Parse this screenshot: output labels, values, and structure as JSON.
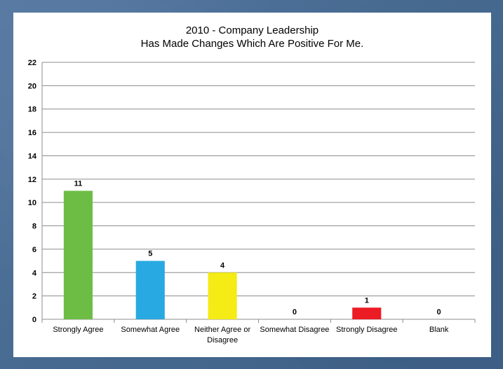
{
  "chart_data": {
    "type": "bar",
    "title": [
      "2010 - Company Leadership",
      "Has Made Changes Which Are Positive For Me."
    ],
    "categories": [
      [
        "Strongly Agree"
      ],
      [
        "Somewhat Agree"
      ],
      [
        "Neither Agree or",
        "Disagree"
      ],
      [
        "Somewhat Disagree"
      ],
      [
        "Strongly Disagree"
      ],
      [
        "Blank"
      ]
    ],
    "values": [
      11,
      5,
      4,
      0,
      1,
      0
    ],
    "colors": [
      "#6dbd45",
      "#29a9e1",
      "#f4ec14",
      "#999999",
      "#ec1c24",
      "#999999"
    ],
    "ylim": [
      0,
      22
    ],
    "yticks": [
      0,
      2,
      4,
      6,
      8,
      10,
      12,
      14,
      16,
      18,
      20,
      22
    ],
    "grid": true,
    "legend": "none"
  }
}
